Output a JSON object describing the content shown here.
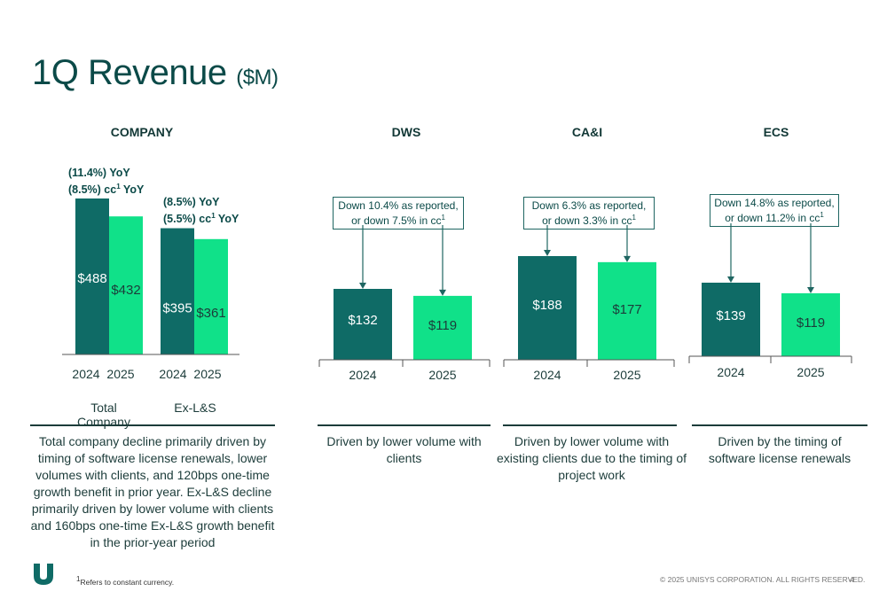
{
  "title": {
    "main": "1Q Revenue",
    "unit": "($M)"
  },
  "colors": {
    "prior": "#0f6b66",
    "current": "#10e189",
    "text": "#1c3c3a",
    "accent": "#0b4a48"
  },
  "chart_data": [
    {
      "type": "bar",
      "title": "COMPANY",
      "categories": [
        "Total Company",
        "Ex-L&S"
      ],
      "series": [
        {
          "name": "2024",
          "values": [
            488,
            395
          ],
          "labels": [
            "$488",
            "$395"
          ]
        },
        {
          "name": "2025",
          "values": [
            432,
            361
          ],
          "labels": [
            "$432",
            "$361"
          ]
        }
      ],
      "year_labels": [
        "2024",
        "2025",
        "2024",
        "2025"
      ],
      "annotations": [
        {
          "line1": "(11.4%) YoY",
          "line2": "(8.5%) cc",
          "line2_sup": "1",
          "line2_suffix": " YoY"
        },
        {
          "line1": "(8.5%) YoY",
          "line2": "(5.5%) cc",
          "line2_sup": "1",
          "line2_suffix": " YoY"
        }
      ],
      "description": "Total company decline primarily driven by timing of software license renewals, lower volumes with clients, and 120bps one-time growth benefit in prior year. Ex-L&S decline primarily driven by lower volume with clients and 160bps one-time Ex-L&S growth benefit in the prior-year period"
    },
    {
      "type": "bar",
      "title": "DWS",
      "categories": [
        "2024",
        "2025"
      ],
      "values": [
        132,
        119
      ],
      "labels": [
        "$132",
        "$119"
      ],
      "annotation": {
        "text": "Down 10.4% as reported, or down 7.5% in cc",
        "sup": "1"
      },
      "description": "Driven by lower volume with clients"
    },
    {
      "type": "bar",
      "title": "CA&I",
      "categories": [
        "2024",
        "2025"
      ],
      "values": [
        188,
        177
      ],
      "labels": [
        "$188",
        "$177"
      ],
      "annotation": {
        "text": "Down 6.3% as reported, or down 3.3% in cc",
        "sup": "1"
      },
      "description": "Driven by lower volume with existing clients due to the timing of project work"
    },
    {
      "type": "bar",
      "title": "ECS",
      "categories": [
        "2024",
        "2025"
      ],
      "values": [
        139,
        119
      ],
      "labels": [
        "$139",
        "$119"
      ],
      "annotation": {
        "text": "Down 14.8% as reported, or down 11.2% in cc",
        "sup": "1"
      },
      "description": "Driven by the timing of software license renewals"
    }
  ],
  "footer": {
    "logo_icon": "unisys-u-icon",
    "footnote": "Refers to constant currency.",
    "footnote_sup": "1",
    "copyright": "© 2025 UNISYS CORPORATION. ALL RIGHTS RESERVED.",
    "page_number": "4"
  }
}
